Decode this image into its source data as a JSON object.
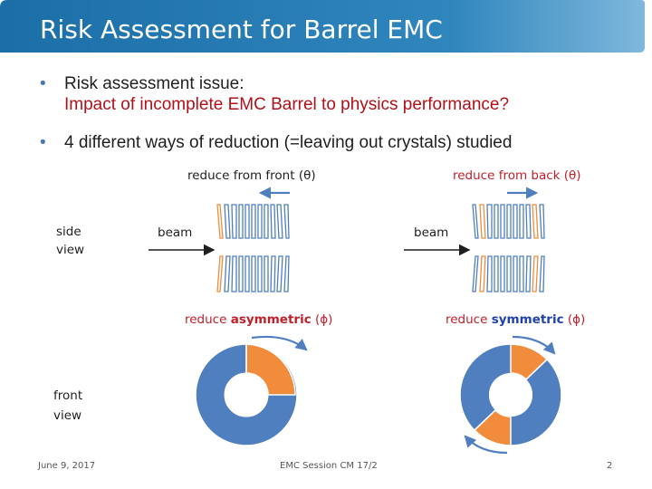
{
  "slide": {
    "title": "Risk Assessment for Barrel EMC",
    "bullets": [
      {
        "line1": "Risk assessment issue:",
        "line2": "Impact of incomplete EMC Barrel to physics performance?"
      },
      {
        "line1": "4 different ways of reduction (=leaving out crystals) studied"
      }
    ],
    "labels": {
      "reduce_front": "reduce from front (θ)",
      "reduce_back": "reduce from back (θ)",
      "side_view": [
        "side",
        "view"
      ],
      "beam": "beam",
      "reduce_asym_prefix": "reduce ",
      "reduce_asym_word": "asymmetric",
      "reduce_asym_suffix": " (ϕ)",
      "reduce_sym_prefix": "reduce ",
      "reduce_sym_word": "symmetric",
      "reduce_sym_suffix": " (ϕ)",
      "front_view": [
        "front",
        "view"
      ]
    },
    "footer": {
      "date": "June 9, 2017",
      "session": "EMC Session CM 17/2",
      "page": "2"
    },
    "colors": {
      "title_bar": "#2f7fb4",
      "crystal_blue": "#4f7fbf",
      "crystal_orange": "#f08c3c",
      "arrow_blue": "#4f7fbf"
    }
  }
}
